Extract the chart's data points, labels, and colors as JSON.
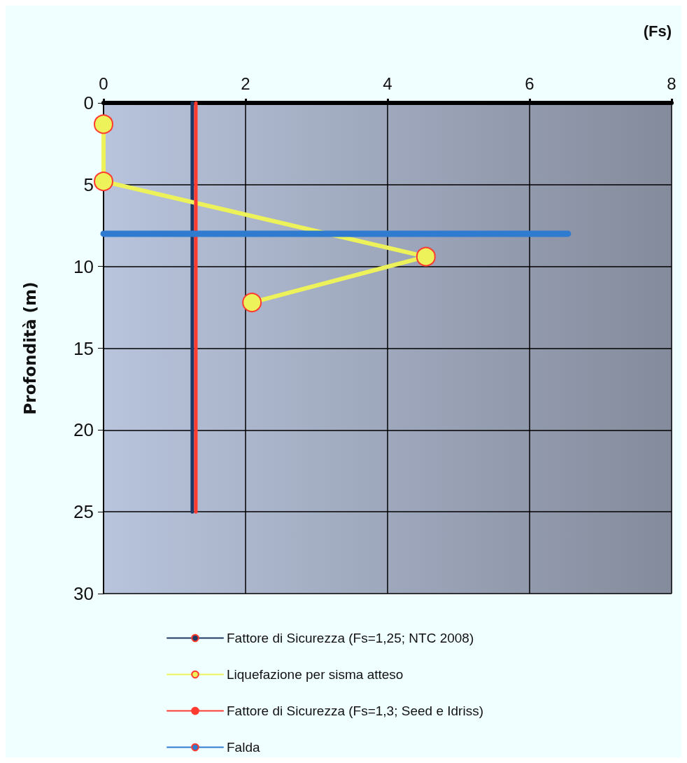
{
  "chart_data": {
    "type": "line",
    "xlabel": "(Fs)",
    "ylabel": "Profondità (m)",
    "xlim": [
      0,
      8
    ],
    "xticks": [
      0,
      2,
      4,
      6,
      8
    ],
    "ylim": [
      30,
      0
    ],
    "yticks": [
      0,
      5,
      10,
      15,
      20,
      25,
      30
    ],
    "grid": true,
    "legend": "bottom",
    "series": [
      {
        "name": "Fattore di Sicurezza (Fs=1,25; NTC 2008)",
        "color": "#1f3864",
        "marker": "none",
        "x": [
          1.25,
          1.25
        ],
        "values": [
          0,
          25
        ]
      },
      {
        "name": "Liquefazione per sisma atteso",
        "color": "#eef25a",
        "marker": "circle",
        "x": [
          0,
          0,
          4.54,
          2.09
        ],
        "values": [
          1.3,
          4.8,
          9.4,
          12.2
        ]
      },
      {
        "name": "Fattore di Sicurezza (Fs=1,3; Seed e Idriss)",
        "color": "#ff3b30",
        "marker": "none",
        "x": [
          1.3,
          1.3
        ],
        "values": [
          0,
          25
        ]
      },
      {
        "name": "Falda",
        "color": "#2e7bd0",
        "marker": "none",
        "x": [
          0,
          6.54
        ],
        "values": [
          8,
          8
        ]
      }
    ]
  }
}
